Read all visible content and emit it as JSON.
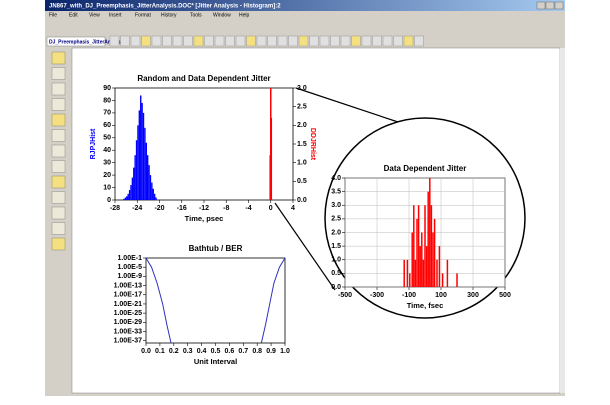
{
  "window": {
    "title": "JN867_with_DJ_Preemphasis_JitterAnalysis.DOC* [Jitter Analysis - Histogram]:2",
    "menu": [
      "File",
      "Edit",
      "View",
      "Insert",
      "Format",
      "History",
      "Tools",
      "Window",
      "Help"
    ],
    "selector": "DJ_Preemphasis_JitterAnalysis"
  },
  "chart_data": [
    {
      "type": "histogram",
      "title": "Random and Data Dependent Jitter",
      "x_label": "Time, psec",
      "y_label": "RJPJHist",
      "y2_label": "DDJRHist",
      "grid": false,
      "xlim": [
        -28,
        4
      ],
      "xticks": [
        -28,
        -24,
        -20,
        -16,
        -12,
        -8,
        -4,
        0,
        4
      ],
      "ylim": [
        0,
        90
      ],
      "yticks": [
        0,
        10,
        20,
        30,
        40,
        50,
        60,
        70,
        80,
        90
      ],
      "y2lim": [
        0,
        3
      ],
      "y2ticks": [
        {
          "value": 0,
          "label": "0.0"
        },
        0.5,
        {
          "value": 1,
          "label": "1.0"
        },
        1.5,
        {
          "value": 2,
          "label": "2.0"
        },
        2.5,
        {
          "value": 3,
          "label": "3.0"
        }
      ],
      "series": [
        {
          "color": "#0000ff",
          "bins": [
            -26.5,
            -26.25,
            -26,
            -25.75,
            -25.5,
            -25.25,
            -25,
            -24.75,
            -24.5,
            -24.25,
            -24,
            -23.75,
            -23.5,
            -23.25,
            -23,
            -22.75,
            -22.5,
            -22.25,
            -22,
            -21.75,
            -21.5,
            -21.25,
            -21,
            -20.75,
            -20.5
          ],
          "values": [
            1,
            2,
            3,
            5,
            8,
            12,
            18,
            26,
            36,
            48,
            60,
            72,
            84,
            78,
            70,
            58,
            46,
            36,
            28,
            20,
            14,
            9,
            5,
            2
          ]
        },
        {
          "color": "#ff0000",
          "axis": "y2",
          "x": [
            -0.1,
            0,
            0.1
          ],
          "values": [
            1.2,
            3.0,
            2.2
          ]
        }
      ]
    },
    {
      "type": "line",
      "title": "Bathtub / BER",
      "x_label": "Unit Interval",
      "log_y": true,
      "grid": false,
      "xlim": [
        0,
        1
      ],
      "xticks": [
        {
          "value": 0,
          "label": "0.0"
        },
        0.1,
        0.2,
        0.3,
        0.4,
        0.5,
        0.6,
        0.7,
        0.8,
        0.9,
        {
          "value": 1,
          "label": "1.0"
        }
      ],
      "ylim": [
        1e-38,
        0.1
      ],
      "yticks": [
        {
          "value": 0.1,
          "label": "1.00E-1"
        },
        {
          "value": 1e-05,
          "label": "1.00E-5"
        },
        {
          "value": 1e-09,
          "label": "1.00E-9"
        },
        {
          "value": 1e-13,
          "label": "1.00E-13"
        },
        {
          "value": 1e-17,
          "label": "1.00E-17"
        },
        {
          "value": 1e-21,
          "label": "1.00E-21"
        },
        {
          "value": 1e-25,
          "label": "1.00E-25"
        },
        {
          "value": 1e-29,
          "label": "1.00E-29"
        },
        {
          "value": 1e-33,
          "label": "1.00E-33"
        },
        {
          "value": 1e-37,
          "label": "1.00E-37"
        }
      ],
      "series": [
        {
          "color": "#3030c0",
          "x": [
            0.0,
            0.04,
            0.08,
            0.12,
            0.15,
            0.18
          ],
          "values": [
            0.1,
            1e-05,
            1e-12,
            1e-21,
            1e-30,
            1e-38
          ]
        },
        {
          "color": "#3030c0",
          "x": [
            0.83,
            0.86,
            0.89,
            0.92,
            0.96,
            1.0
          ],
          "values": [
            1e-38,
            1e-30,
            1e-21,
            1e-12,
            1e-05,
            0.1
          ]
        }
      ]
    },
    {
      "type": "bar",
      "title": "Data Dependent Jitter",
      "x_label": "Time, fsec",
      "grid": true,
      "xlim": [
        -500,
        500
      ],
      "xticks": [
        -500,
        -300,
        -100,
        100,
        300,
        500
      ],
      "ylim": [
        0,
        4
      ],
      "yticks": [
        {
          "value": 0,
          "label": "0.0"
        },
        0.5,
        {
          "value": 1,
          "label": "1.0"
        },
        1.5,
        {
          "value": 2,
          "label": "2.0"
        },
        2.5,
        {
          "value": 3,
          "label": "3.0"
        },
        3.5,
        {
          "value": 4,
          "label": "4.0"
        }
      ],
      "series": [
        {
          "color": "#ff0000",
          "x": [
            -130,
            -110,
            -95,
            -80,
            -70,
            -60,
            -50,
            -40,
            -30,
            -20,
            -10,
            0,
            10,
            20,
            30,
            40,
            50,
            60,
            75,
            90,
            110,
            140,
            200
          ],
          "values": [
            1,
            1,
            0.5,
            2,
            3,
            1,
            2.5,
            3,
            1.5,
            2,
            1,
            3,
            1.5,
            3.5,
            4,
            3,
            2,
            2.5,
            1,
            1.5,
            0.5,
            1,
            0.5
          ]
        }
      ]
    }
  ]
}
